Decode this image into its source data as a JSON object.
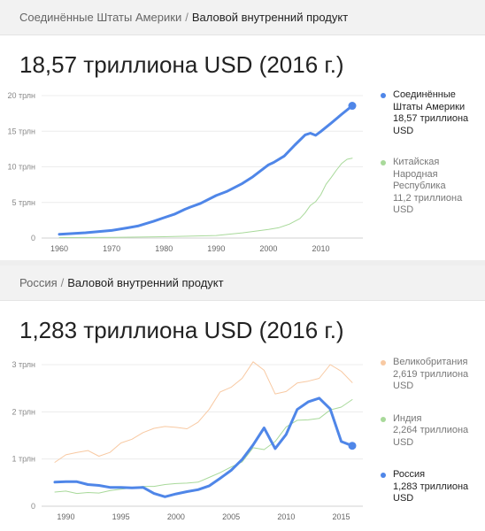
{
  "colors": {
    "usa": "#4f86e8",
    "china": "#a8d99a",
    "uk": "#f8c9a2",
    "india": "#a8d99a",
    "russia": "#4f86e8"
  },
  "panel1": {
    "breadcrumb_parent": "Соединённые Штаты Америки",
    "separator": "/",
    "breadcrumb_current": "Валовой внутренний продукт",
    "headline": "18,57 триллиона USD (2016 г.)",
    "legend": [
      {
        "name": "Соединённые Штаты Америки",
        "value": "18,57 триллиона USD"
      },
      {
        "name": "Китайская Народная Республика",
        "value": "11,2 триллиона USD"
      }
    ]
  },
  "panel2": {
    "breadcrumb_parent": "Россия",
    "separator": "/",
    "breadcrumb_current": "Валовой внутренний продукт",
    "headline": "1,283 триллиона USD (2016 г.)",
    "legend": [
      {
        "name": "Великобритания",
        "value": "2,619 триллиона USD"
      },
      {
        "name": "Индия",
        "value": "2,264 триллиона USD"
      },
      {
        "name": "Россия",
        "value": "1,283 триллиона USD"
      }
    ]
  },
  "chart_data": [
    {
      "type": "line",
      "title": "18,57 триллиона USD (2016 г.)",
      "xlim": [
        1960,
        2016
      ],
      "ylim": [
        0,
        20
      ],
      "yticks": [
        0,
        5,
        10,
        15,
        20
      ],
      "ytick_labels": [
        "0",
        "5 трлн",
        "10 трлн",
        "15 трлн",
        "20 трлн"
      ],
      "xticks": [
        1960,
        1970,
        1980,
        1990,
        2000,
        2010
      ],
      "xtick_labels": [
        "1960",
        "1970",
        "1980",
        "1990",
        "2000",
        "2010"
      ],
      "series": [
        {
          "name": "Соединённые Штаты Америки",
          "x": [
            1960,
            1965,
            1970,
            1973,
            1975,
            1978,
            1980,
            1982,
            1984,
            1985,
            1987,
            1990,
            1992,
            1995,
            1997,
            2000,
            2001,
            2003,
            2005,
            2007,
            2008,
            2009,
            2010,
            2012,
            2014,
            2016
          ],
          "y": [
            0.54,
            0.74,
            1.07,
            1.43,
            1.69,
            2.35,
            2.86,
            3.34,
            4.04,
            4.34,
            4.87,
            5.98,
            6.54,
            7.66,
            8.61,
            10.28,
            10.62,
            11.51,
            13.04,
            14.48,
            14.72,
            14.42,
            14.96,
            16.16,
            17.39,
            18.57
          ]
        },
        {
          "name": "Китайская Народная Республика",
          "x": [
            1960,
            1970,
            1980,
            1990,
            1995,
            2000,
            2002,
            2004,
            2006,
            2007,
            2008,
            2009,
            2010,
            2011,
            2012,
            2013,
            2014,
            2015,
            2016
          ],
          "y": [
            0.06,
            0.09,
            0.19,
            0.36,
            0.73,
            1.21,
            1.47,
            1.96,
            2.75,
            3.55,
            4.59,
            5.1,
            6.09,
            7.55,
            8.53,
            9.57,
            10.48,
            11.06,
            11.2
          ]
        }
      ],
      "grid": "horizontal",
      "legend_position": "right"
    },
    {
      "type": "line",
      "title": "1,283 триллиона USD (2016 г.)",
      "xlim": [
        1989,
        2016
      ],
      "ylim": [
        0,
        3
      ],
      "yticks": [
        0,
        1,
        2,
        3
      ],
      "ytick_labels": [
        "0",
        "1 трлн",
        "2 трлн",
        "3 трлн"
      ],
      "xticks": [
        1990,
        1995,
        2000,
        2005,
        2010,
        2015
      ],
      "xtick_labels": [
        "1990",
        "1995",
        "2000",
        "2005",
        "2010",
        "2015"
      ],
      "series": [
        {
          "name": "Великобритания",
          "x": [
            1989,
            1990,
            1991,
            1992,
            1993,
            1994,
            1995,
            1996,
            1997,
            1998,
            1999,
            2000,
            2001,
            2002,
            2003,
            2004,
            2005,
            2006,
            2007,
            2008,
            2009,
            2010,
            2011,
            2012,
            2013,
            2014,
            2015,
            2016
          ],
          "y": [
            0.93,
            1.09,
            1.14,
            1.18,
            1.06,
            1.14,
            1.34,
            1.42,
            1.56,
            1.65,
            1.69,
            1.67,
            1.64,
            1.78,
            2.05,
            2.42,
            2.52,
            2.71,
            3.06,
            2.88,
            2.38,
            2.43,
            2.61,
            2.65,
            2.71,
            3.0,
            2.86,
            2.62
          ]
        },
        {
          "name": "Индия",
          "x": [
            1989,
            1990,
            1991,
            1992,
            1993,
            1994,
            1995,
            1996,
            1997,
            1998,
            1999,
            2000,
            2001,
            2002,
            2003,
            2004,
            2005,
            2006,
            2007,
            2008,
            2009,
            2010,
            2011,
            2012,
            2013,
            2014,
            2015,
            2016
          ],
          "y": [
            0.3,
            0.32,
            0.27,
            0.29,
            0.28,
            0.33,
            0.36,
            0.39,
            0.42,
            0.42,
            0.46,
            0.48,
            0.49,
            0.51,
            0.61,
            0.71,
            0.83,
            0.94,
            1.24,
            1.2,
            1.37,
            1.68,
            1.82,
            1.83,
            1.86,
            2.04,
            2.1,
            2.26
          ]
        },
        {
          "name": "Россия",
          "x": [
            1989,
            1990,
            1991,
            1992,
            1993,
            1994,
            1995,
            1996,
            1997,
            1998,
            1999,
            2000,
            2001,
            2002,
            2003,
            2004,
            2005,
            2006,
            2007,
            2008,
            2009,
            2010,
            2011,
            2012,
            2013,
            2014,
            2015,
            2016
          ],
          "y": [
            0.51,
            0.52,
            0.52,
            0.46,
            0.44,
            0.4,
            0.4,
            0.39,
            0.4,
            0.27,
            0.2,
            0.26,
            0.31,
            0.35,
            0.43,
            0.59,
            0.76,
            0.99,
            1.3,
            1.66,
            1.22,
            1.52,
            2.05,
            2.21,
            2.29,
            2.06,
            1.37,
            1.28
          ]
        }
      ],
      "grid": "horizontal",
      "legend_position": "right"
    }
  ]
}
